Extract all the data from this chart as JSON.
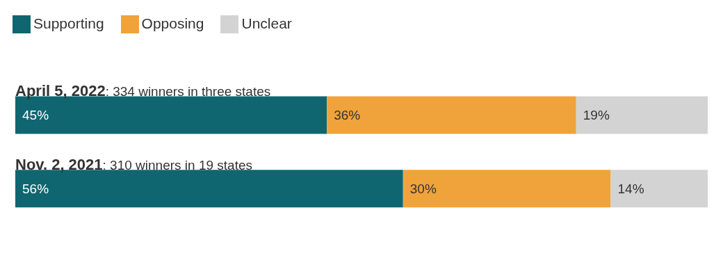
{
  "chart_data": {
    "type": "bar",
    "orientation": "horizontal",
    "stacked": true,
    "legend": "top left",
    "categories": [
      "April 5, 2022: 334 winners in three states",
      "Nov. 2, 2021: 310 winners in 19 states"
    ],
    "series": [
      {
        "name": "Supporting",
        "color": "#0f6670",
        "values": [
          45,
          56
        ],
        "value_labels": [
          "45%",
          "56%"
        ]
      },
      {
        "name": "Opposing",
        "color": "#f0a33a",
        "values": [
          36,
          30
        ],
        "value_labels": [
          "36%",
          "30%"
        ]
      },
      {
        "name": "Unclear",
        "color": "#d3d3d3",
        "values": [
          19,
          14
        ],
        "value_labels": [
          "19%",
          "14%"
        ]
      }
    ]
  }
}
